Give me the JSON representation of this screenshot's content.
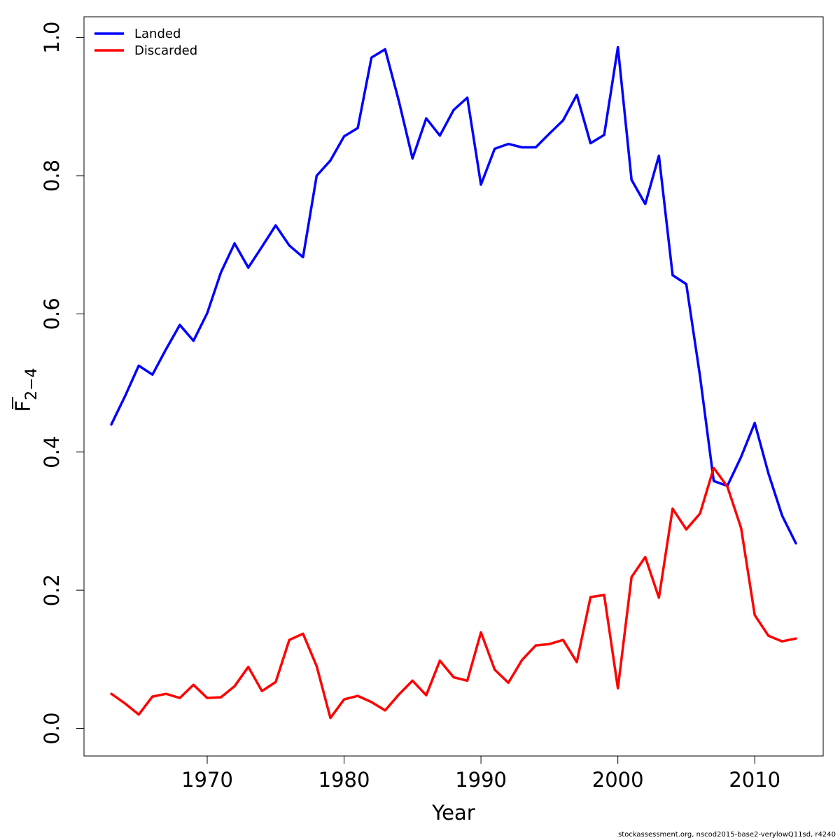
{
  "chart_data": {
    "type": "line",
    "xlabel": "Year",
    "ylabel_main": "F",
    "ylabel_sub": "2−4",
    "xlim": [
      1961,
      2015
    ],
    "ylim": [
      -0.04,
      1.03
    ],
    "xticks": [
      1970,
      1980,
      1990,
      2000,
      2010
    ],
    "yticks": [
      0.0,
      0.2,
      0.4,
      0.6,
      0.8,
      1.0
    ],
    "ytick_labels": [
      "0.0",
      "0.2",
      "0.4",
      "0.6",
      "0.8",
      "1.0"
    ],
    "grid": false,
    "legend_position": "top-left",
    "x": [
      1963,
      1964,
      1965,
      1966,
      1967,
      1968,
      1969,
      1970,
      1971,
      1972,
      1973,
      1974,
      1975,
      1976,
      1977,
      1978,
      1979,
      1980,
      1981,
      1982,
      1983,
      1984,
      1985,
      1986,
      1987,
      1988,
      1989,
      1990,
      1991,
      1992,
      1993,
      1994,
      1995,
      1996,
      1997,
      1998,
      1999,
      2000,
      2001,
      2002,
      2003,
      2004,
      2005,
      2006,
      2007,
      2008,
      2009,
      2010,
      2011,
      2012,
      2013
    ],
    "series": [
      {
        "name": "Landed",
        "color": "#0000ff",
        "values": [
          0.44,
          0.481,
          0.525,
          0.512,
          0.549,
          0.584,
          0.561,
          0.601,
          0.66,
          0.702,
          0.667,
          0.697,
          0.728,
          0.699,
          0.682,
          0.8,
          0.822,
          0.857,
          0.869,
          0.971,
          0.983,
          0.908,
          0.825,
          0.883,
          0.858,
          0.895,
          0.913,
          0.787,
          0.839,
          0.846,
          0.841,
          0.841,
          0.861,
          0.88,
          0.917,
          0.847,
          0.859,
          0.986,
          0.794,
          0.759,
          0.829,
          0.656,
          0.643,
          0.51,
          0.358,
          0.351,
          0.393,
          0.442,
          0.369,
          0.308,
          0.268
        ]
      },
      {
        "name": "Discarded",
        "color": "#ff0000",
        "values": [
          0.05,
          0.036,
          0.02,
          0.046,
          0.05,
          0.044,
          0.063,
          0.044,
          0.045,
          0.061,
          0.089,
          0.054,
          0.067,
          0.128,
          0.137,
          0.09,
          0.015,
          0.042,
          0.047,
          0.038,
          0.026,
          0.049,
          0.069,
          0.048,
          0.098,
          0.074,
          0.069,
          0.139,
          0.085,
          0.066,
          0.099,
          0.12,
          0.122,
          0.128,
          0.096,
          0.19,
          0.193,
          0.058,
          0.219,
          0.248,
          0.189,
          0.318,
          0.288,
          0.311,
          0.377,
          0.35,
          0.29,
          0.164,
          0.134,
          0.126,
          0.13
        ]
      }
    ]
  },
  "footer": {
    "credit": "stockassessment.org, nscod2015-base2-verylowQ11sd, r4240"
  }
}
